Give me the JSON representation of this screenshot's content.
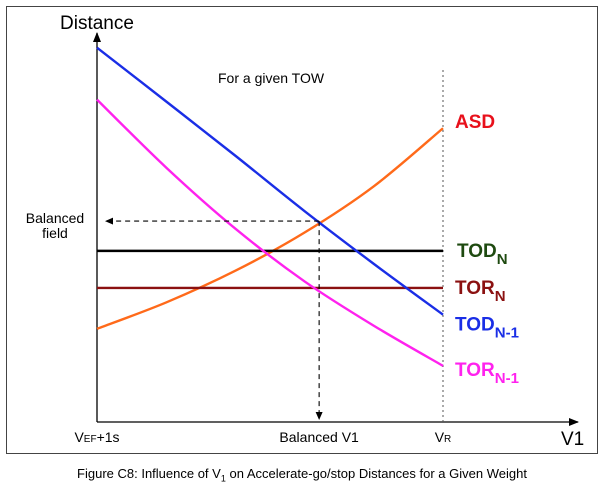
{
  "chart_data": {
    "type": "line",
    "title": "For a given TOW",
    "ylabel": "Distance",
    "xlabel": "V1",
    "xlim": [
      0,
      100
    ],
    "ylim": [
      0,
      100
    ],
    "x_ticks": [
      {
        "x": 0,
        "label": "VEF+1s"
      },
      {
        "x": 64.2,
        "label": "Balanced V1"
      },
      {
        "x": 100,
        "label": "VR"
      }
    ],
    "y_annotation": {
      "label_line1": "Balanced",
      "label_line2": "field",
      "y": 52.6
    },
    "series": [
      {
        "name": "ASD",
        "sub": "",
        "color": "#ff6a1a",
        "label_color": "#e8101b",
        "points": [
          [
            0,
            24.4
          ],
          [
            20,
            31.3
          ],
          [
            40,
            39.6
          ],
          [
            60,
            49.6
          ],
          [
            80,
            61.7
          ],
          [
            100,
            76.9
          ]
        ]
      },
      {
        "name": "TOD",
        "sub": "N",
        "color": "#000000",
        "label_color": "#1e4a10",
        "points": [
          [
            0,
            44.8
          ],
          [
            100,
            44.8
          ]
        ]
      },
      {
        "name": "TOR",
        "sub": "N",
        "color": "#8b1111",
        "label_color": "#8b1111",
        "points": [
          [
            0,
            35.1
          ],
          [
            100,
            35.1
          ]
        ]
      },
      {
        "name": "TOD",
        "sub": "N-1",
        "color": "#1a2ee6",
        "label_color": "#1a2ee6",
        "points": [
          [
            0,
            98.0
          ],
          [
            20,
            83.9
          ],
          [
            40,
            69.7
          ],
          [
            60,
            55.2
          ],
          [
            80,
            41.4
          ],
          [
            100,
            28.1
          ]
        ]
      },
      {
        "name": "TOR",
        "sub": "N-1",
        "color": "#ff22ee",
        "label_color": "#ff22ee",
        "points": [
          [
            0,
            84.4
          ],
          [
            20,
            66.6
          ],
          [
            40,
            50.6
          ],
          [
            60,
            36.8
          ],
          [
            80,
            25.2
          ],
          [
            100,
            14.7
          ]
        ]
      }
    ],
    "balanced_point": {
      "x": 64.2,
      "y": 52.6
    }
  },
  "caption": {
    "prefix": "Figure C8: Influence of V",
    "sub": "1",
    "suffix": " on Accelerate-go/stop Distances for a Given Weight"
  }
}
